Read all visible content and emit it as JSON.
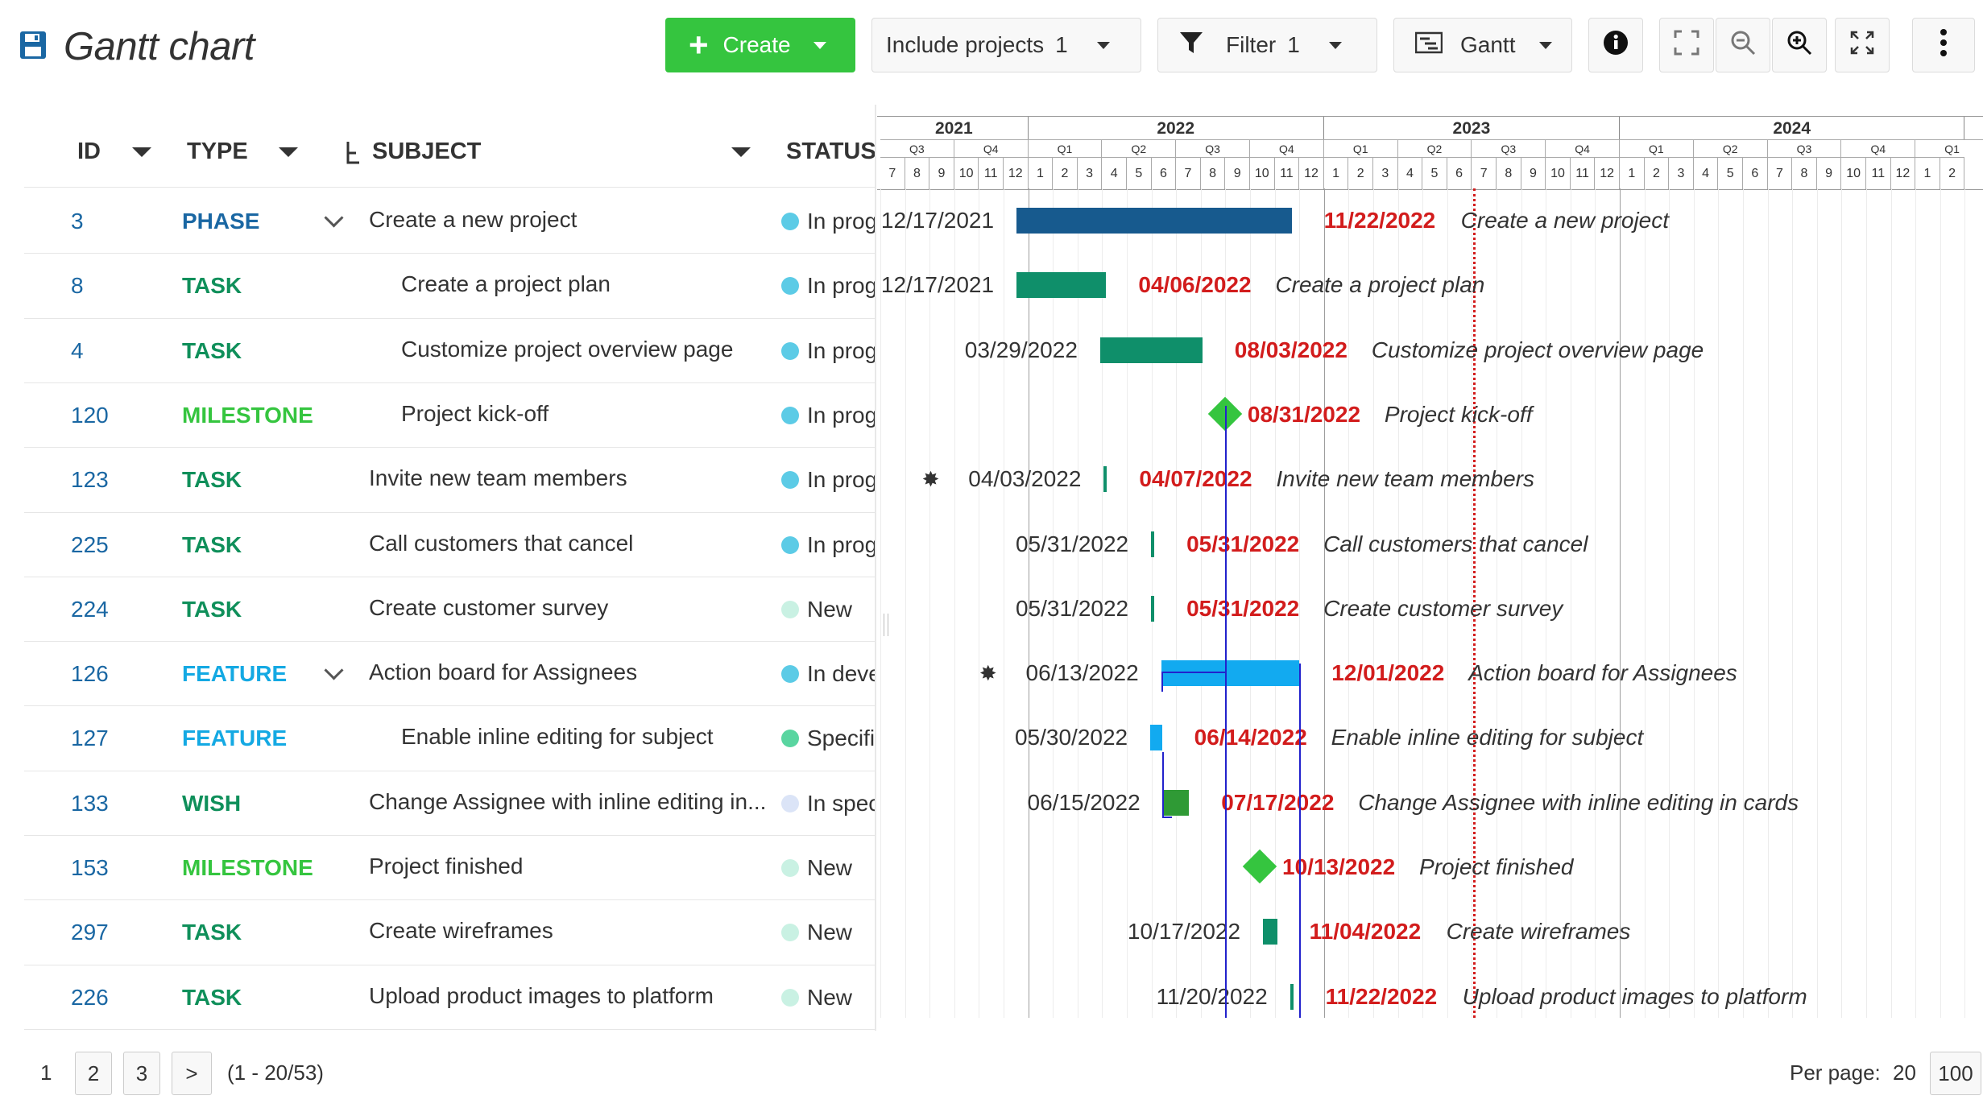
{
  "header": {
    "title": "Gantt chart",
    "create_label": "Create",
    "include_projects_label": "Include projects",
    "include_projects_count": "1",
    "filter_label": "Filter",
    "filter_count": "1",
    "view_label": "Gantt"
  },
  "table": {
    "columns": [
      "ID",
      "TYPE",
      "SUBJECT",
      "STATUS"
    ],
    "rows": [
      {
        "id": "3",
        "type": "PHASE",
        "type_color": "#1a67a3",
        "subject": "Create a new project",
        "indent": 0,
        "expandable": true,
        "status": "In progress",
        "status_color": "#5ccbe6"
      },
      {
        "id": "8",
        "type": "TASK",
        "type_color": "#0f8f5a",
        "subject": "Create a project plan",
        "indent": 1,
        "expandable": false,
        "status": "In progress",
        "status_color": "#5ccbe6"
      },
      {
        "id": "4",
        "type": "TASK",
        "type_color": "#0f8f5a",
        "subject": "Customize project overview page",
        "indent": 1,
        "expandable": false,
        "status": "In progress",
        "status_color": "#5ccbe6"
      },
      {
        "id": "120",
        "type": "MILESTONE",
        "type_color": "#35c53f",
        "subject": "Project kick-off",
        "indent": 1,
        "expandable": false,
        "status": "In progress",
        "status_color": "#5ccbe6"
      },
      {
        "id": "123",
        "type": "TASK",
        "type_color": "#0f8f5a",
        "subject": "Invite new team members",
        "indent": 0,
        "expandable": false,
        "status": "In progress",
        "status_color": "#5ccbe6"
      },
      {
        "id": "225",
        "type": "TASK",
        "type_color": "#0f8f5a",
        "subject": "Call customers that cancel",
        "indent": 0,
        "expandable": false,
        "status": "In progress",
        "status_color": "#5ccbe6"
      },
      {
        "id": "224",
        "type": "TASK",
        "type_color": "#0f8f5a",
        "subject": "Create customer survey",
        "indent": 0,
        "expandable": false,
        "status": "New",
        "status_color": "#c9f1e3"
      },
      {
        "id": "126",
        "type": "FEATURE",
        "type_color": "#14a9e3",
        "subject": "Action board for Assignees",
        "indent": 0,
        "expandable": true,
        "status": "In development",
        "status_color": "#5ccbe6"
      },
      {
        "id": "127",
        "type": "FEATURE",
        "type_color": "#14a9e3",
        "subject": "Enable inline editing for subject",
        "indent": 1,
        "expandable": false,
        "status": "Specified",
        "status_color": "#59d5a0"
      },
      {
        "id": "133",
        "type": "WISH",
        "type_color": "#0f8f5a",
        "subject": "Change Assignee with inline editing in...",
        "indent": 0,
        "expandable": false,
        "status": "In specification",
        "status_color": "#dbe4f7"
      },
      {
        "id": "153",
        "type": "MILESTONE",
        "type_color": "#35c53f",
        "subject": "Project finished",
        "indent": 0,
        "expandable": false,
        "status": "New",
        "status_color": "#c9f1e3"
      },
      {
        "id": "297",
        "type": "TASK",
        "type_color": "#0f8f5a",
        "subject": "Create wireframes",
        "indent": 0,
        "expandable": false,
        "status": "New",
        "status_color": "#c9f1e3"
      },
      {
        "id": "226",
        "type": "TASK",
        "type_color": "#0f8f5a",
        "subject": "Upload product images to platform",
        "indent": 0,
        "expandable": false,
        "status": "New",
        "status_color": "#c9f1e3"
      }
    ]
  },
  "gantt": {
    "years": [
      "2021",
      "2022",
      "2023",
      "2024"
    ],
    "quarters": [
      "Q3",
      "Q4",
      "Q1",
      "Q2",
      "Q3",
      "Q4",
      "Q1",
      "Q2",
      "Q3",
      "Q4",
      "Q1",
      "Q2",
      "Q3",
      "Q4",
      "Q1"
    ],
    "months": [
      "7",
      "8",
      "9",
      "10",
      "11",
      "12",
      "1",
      "2",
      "3",
      "4",
      "5",
      "6",
      "7",
      "8",
      "9",
      "10",
      "11",
      "12",
      "1",
      "2",
      "3",
      "4",
      "5",
      "6",
      "7",
      "8",
      "9",
      "10",
      "11",
      "12",
      "1",
      "2",
      "3",
      "4",
      "5",
      "6",
      "7",
      "8",
      "9",
      "10",
      "11",
      "12",
      "1",
      "2"
    ],
    "rows": [
      {
        "kind": "bar",
        "start": "12/17/2021",
        "end": "11/22/2022",
        "label": "Create a new project",
        "color": "#175a8e",
        "pinned": false
      },
      {
        "kind": "bar",
        "start": "12/17/2021",
        "end": "04/06/2022",
        "label": "Create a project plan",
        "color": "#0f8f6a",
        "pinned": false
      },
      {
        "kind": "bar",
        "start": "03/29/2022",
        "end": "08/03/2022",
        "label": "Customize project overview page",
        "color": "#0f8f6a",
        "pinned": false
      },
      {
        "kind": "milestone",
        "start": "",
        "end": "08/31/2022",
        "label": "Project kick-off",
        "color": "#35c53f",
        "pinned": false
      },
      {
        "kind": "bar",
        "start": "04/03/2022",
        "end": "04/07/2022",
        "label": "Invite new team members",
        "color": "#0f8f6a",
        "pinned": true
      },
      {
        "kind": "bar",
        "start": "05/31/2022",
        "end": "05/31/2022",
        "label": "Call customers that cancel",
        "color": "#0f8f6a",
        "pinned": false
      },
      {
        "kind": "bar",
        "start": "05/31/2022",
        "end": "05/31/2022",
        "label": "Create customer survey",
        "color": "#0f8f6a",
        "pinned": false
      },
      {
        "kind": "bar",
        "start": "06/13/2022",
        "end": "12/01/2022",
        "label": "Action board for Assignees",
        "color": "#12aaf0",
        "pinned": true
      },
      {
        "kind": "bar",
        "start": "05/30/2022",
        "end": "06/14/2022",
        "label": "Enable inline editing for subject",
        "color": "#12aaf0",
        "pinned": false
      },
      {
        "kind": "bar",
        "start": "06/15/2022",
        "end": "07/17/2022",
        "label": "Change Assignee with inline editing in cards",
        "color": "#2f9a35",
        "pinned": false
      },
      {
        "kind": "milestone",
        "start": "",
        "end": "10/13/2022",
        "label": "Project finished",
        "color": "#35c53f",
        "pinned": false
      },
      {
        "kind": "bar",
        "start": "10/17/2022",
        "end": "11/04/2022",
        "label": "Create wireframes",
        "color": "#0f8f6a",
        "pinned": false
      },
      {
        "kind": "bar",
        "start": "11/20/2022",
        "end": "11/22/2022",
        "label": "Upload product images to platform",
        "color": "#0f8f6a",
        "pinned": false
      }
    ]
  },
  "pagination": {
    "current": "1",
    "pages": [
      "2",
      "3"
    ],
    "next": ">",
    "range": "(1 - 20/53)",
    "per_page_label": "Per page:",
    "per_page_options": [
      "20",
      "100"
    ]
  }
}
